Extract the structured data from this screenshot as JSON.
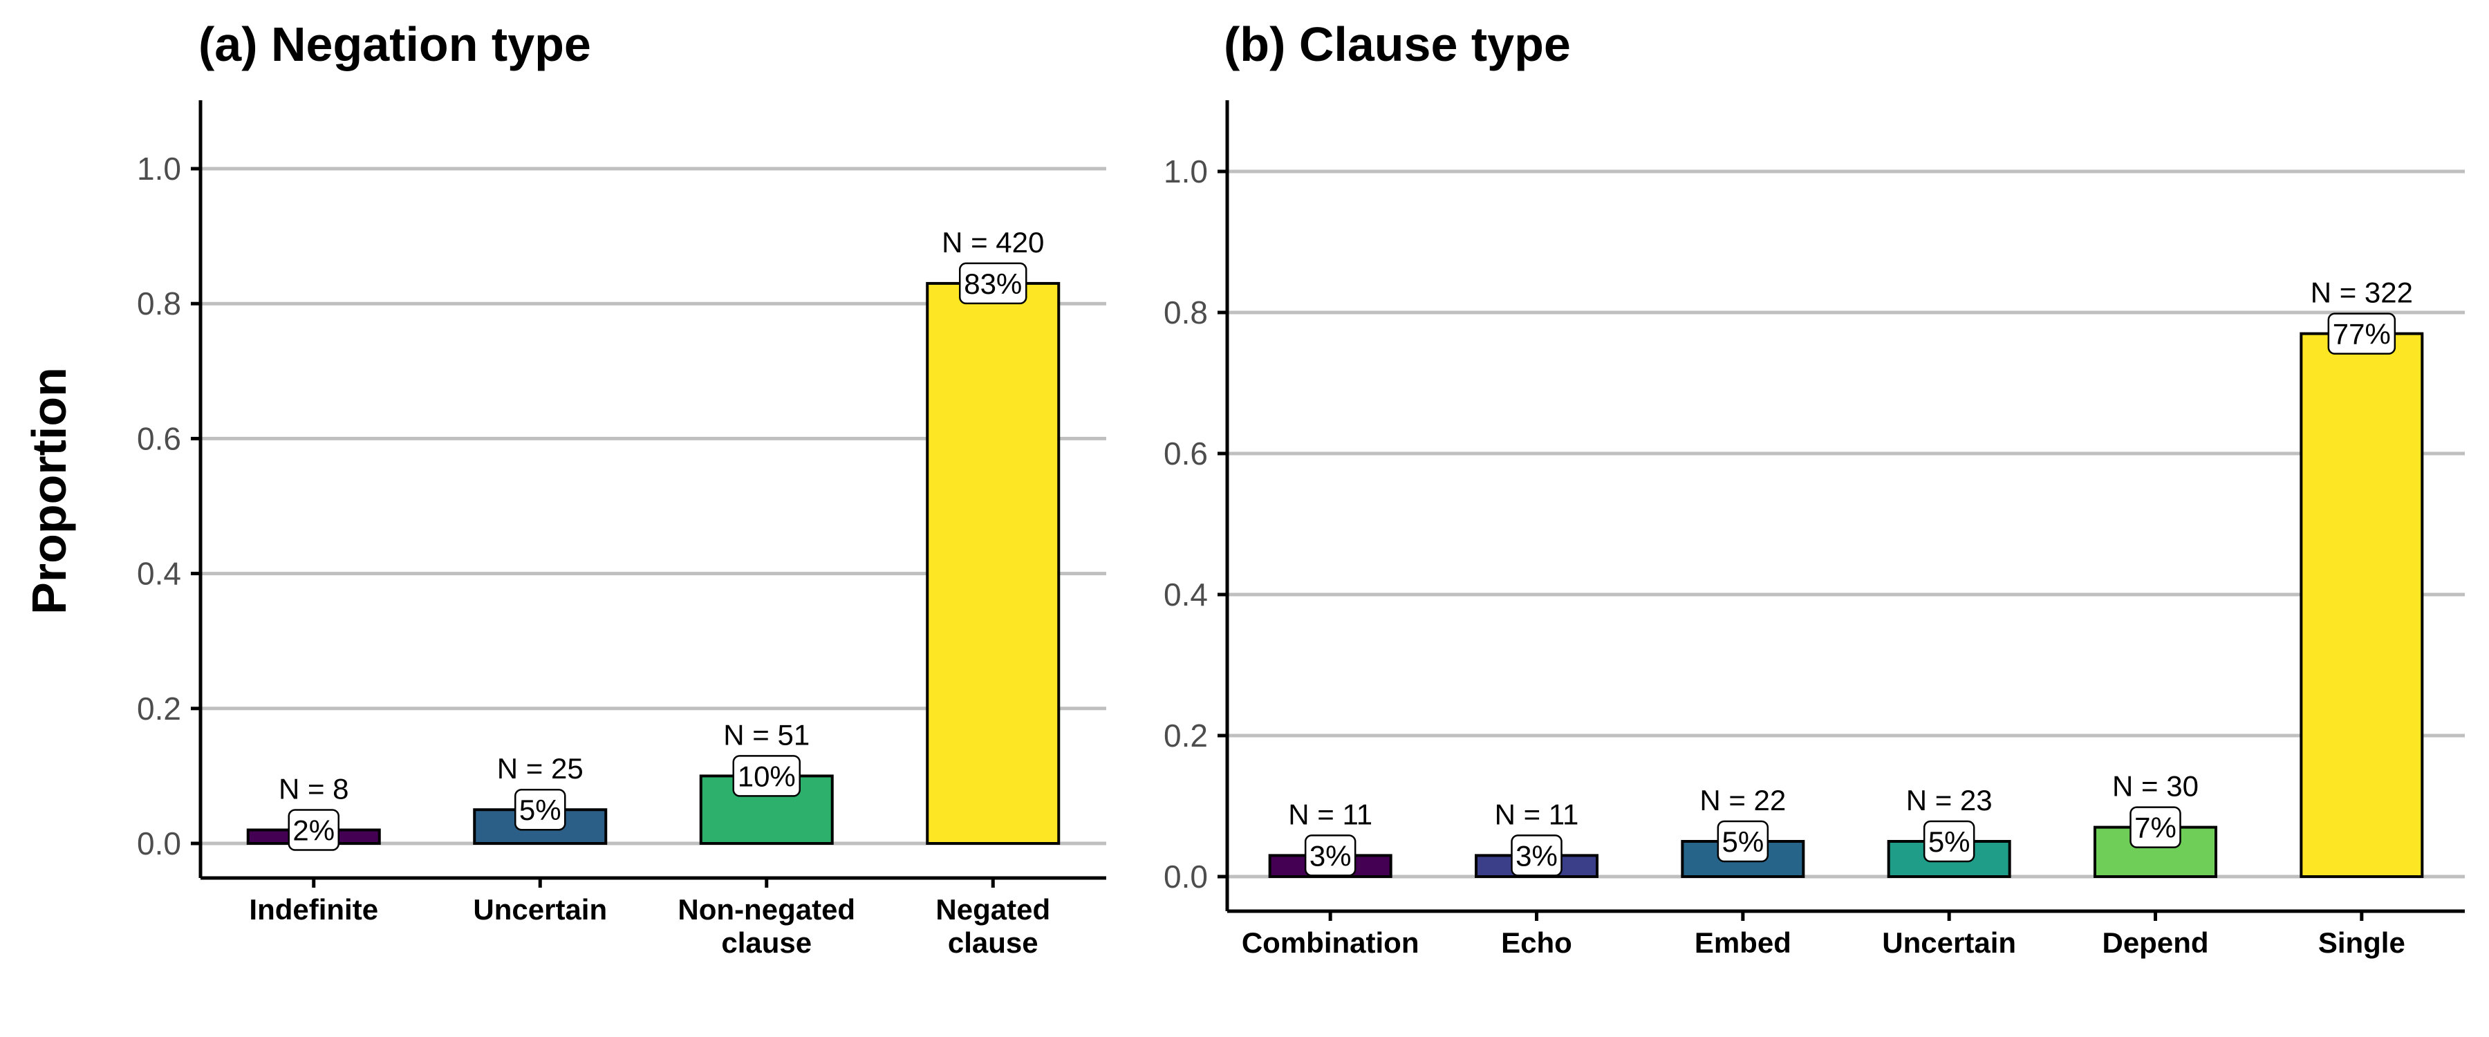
{
  "ylabel": "Proportion",
  "chart_data": [
    {
      "type": "bar",
      "title": "(a) Negation type",
      "ylabel": "Proportion",
      "xlabel": "",
      "ylim": [
        0,
        1.1
      ],
      "yticks": [
        "0.0",
        "0.2",
        "0.4",
        "0.6",
        "0.8",
        "1.0"
      ],
      "grid": "horizontal",
      "categories": [
        "Indefinite",
        "Uncertain",
        "Non-negated clause",
        "Negated clause"
      ],
      "category_lines": [
        [
          "Indefinite"
        ],
        [
          "Uncertain"
        ],
        [
          "Non-negated",
          "clause"
        ],
        [
          "Negated",
          "clause"
        ]
      ],
      "values": [
        0.02,
        0.05,
        0.1,
        0.83
      ],
      "counts": [
        "N = 8",
        "N = 25",
        "N = 51",
        "N = 420"
      ],
      "labels": [
        "2%",
        "5%",
        "10%",
        "83%"
      ],
      "colors": [
        "#440154",
        "#2c5f87",
        "#2db06b",
        "#fde725"
      ]
    },
    {
      "type": "bar",
      "title": "(b) Clause type",
      "ylabel": "",
      "xlabel": "",
      "ylim": [
        0,
        1.1
      ],
      "yticks": [
        "0.0",
        "0.2",
        "0.4",
        "0.6",
        "0.8",
        "1.0"
      ],
      "grid": "horizontal",
      "categories": [
        "Combination",
        "Echo",
        "Embed",
        "Uncertain",
        "Depend",
        "Single"
      ],
      "category_lines": [
        [
          "Combination"
        ],
        [
          "Echo"
        ],
        [
          "Embed"
        ],
        [
          "Uncertain"
        ],
        [
          "Depend"
        ],
        [
          "Single"
        ]
      ],
      "values": [
        0.03,
        0.03,
        0.05,
        0.05,
        0.07,
        0.77
      ],
      "counts": [
        "N = 11",
        "N = 11",
        "N = 22",
        "N = 23",
        "N = 30",
        "N = 322"
      ],
      "labels": [
        "3%",
        "3%",
        "5%",
        "5%",
        "7%",
        "77%"
      ],
      "colors": [
        "#440154",
        "#3b3f8a",
        "#26648a",
        "#1f9d89",
        "#6ece57",
        "#fde725"
      ]
    }
  ]
}
